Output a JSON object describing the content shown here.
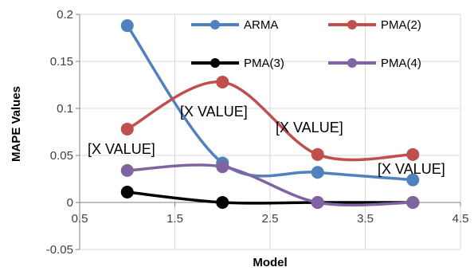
{
  "chart_data": {
    "type": "scatter",
    "smooth": true,
    "xlabel": "Model",
    "ylabel": "MAPE Values",
    "xlim": [
      0.5,
      4.5
    ],
    "ylim": [
      -0.05,
      0.2
    ],
    "x_ticks": [
      "0.5",
      "1.5",
      "2.5",
      "3.5",
      "4.5"
    ],
    "y_ticks": [
      "-0.05",
      "0",
      "0.05",
      "0.1",
      "0.15",
      "0.2"
    ],
    "grid": true,
    "legend_position": "top-right",
    "series": [
      {
        "name": "ARMA",
        "color": "#4f81bd",
        "x": [
          1,
          2,
          3,
          4
        ],
        "y": [
          0.188,
          0.042,
          0.032,
          0.024
        ]
      },
      {
        "name": "PMA(2)",
        "color": "#c0504d",
        "x": [
          1,
          2,
          3,
          4
        ],
        "y": [
          0.078,
          0.128,
          0.051,
          0.051
        ]
      },
      {
        "name": "PMA(3)",
        "color": "#000000",
        "x": [
          1,
          2,
          3,
          4
        ],
        "y": [
          0.011,
          0.0,
          0.0,
          0.0
        ]
      },
      {
        "name": "PMA(4)",
        "color": "#8064a2",
        "x": [
          1,
          2,
          3,
          4
        ],
        "y": [
          0.034,
          0.038,
          0.0,
          0.0
        ]
      }
    ],
    "data_labels": [
      "[X VALUE]",
      "[X VALUE]",
      "[X VALUE]",
      "[X VALUE]"
    ]
  }
}
